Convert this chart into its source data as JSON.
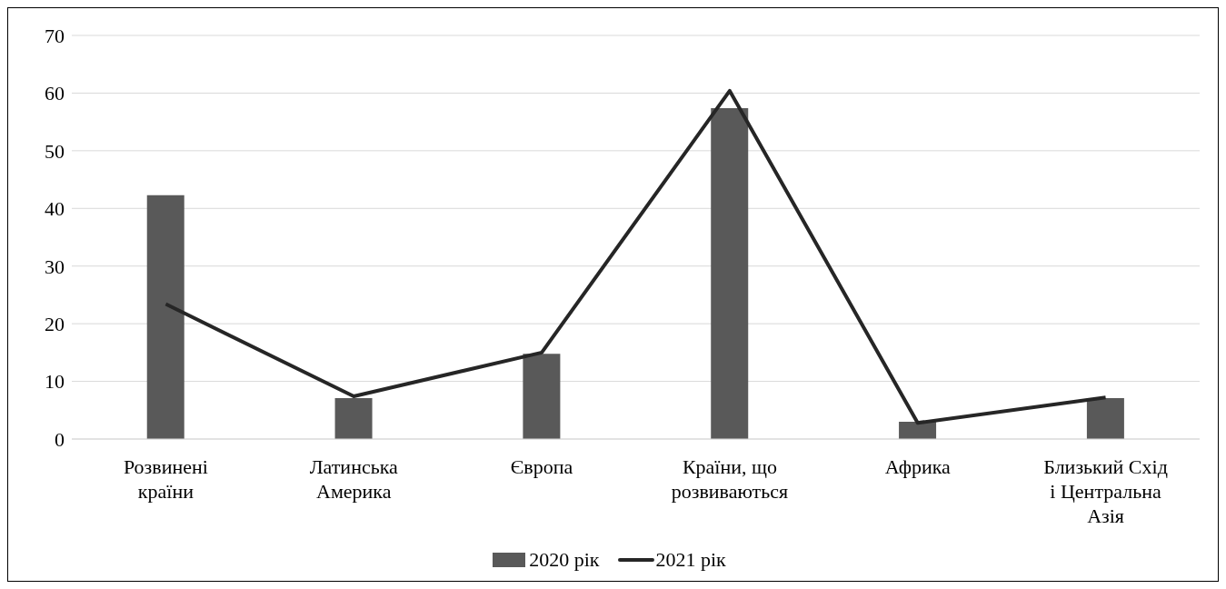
{
  "chart_data": {
    "type": "bar",
    "categories": [
      "Розвинені країни",
      "Латинська Америка",
      "Європа",
      "Країни, що розвиваються",
      "Африка",
      "Близький Схід і Центральна Азія"
    ],
    "series": [
      {
        "name": "2020 рік",
        "color": "#595959",
        "values": [
          42.3,
          7.1,
          14.8,
          57.4,
          3.0,
          7.1
        ]
      },
      {
        "name": "2021 рік",
        "type": "line",
        "color": "#262626",
        "values": [
          23.4,
          7.4,
          15.0,
          60.4,
          2.8,
          7.2
        ]
      }
    ],
    "ylim": [
      0,
      70
    ],
    "yticks": [
      0,
      10,
      20,
      30,
      40,
      50,
      60,
      70
    ],
    "grid": "y",
    "legend": "bottom",
    "marker": "none",
    "line_style": "solid"
  }
}
